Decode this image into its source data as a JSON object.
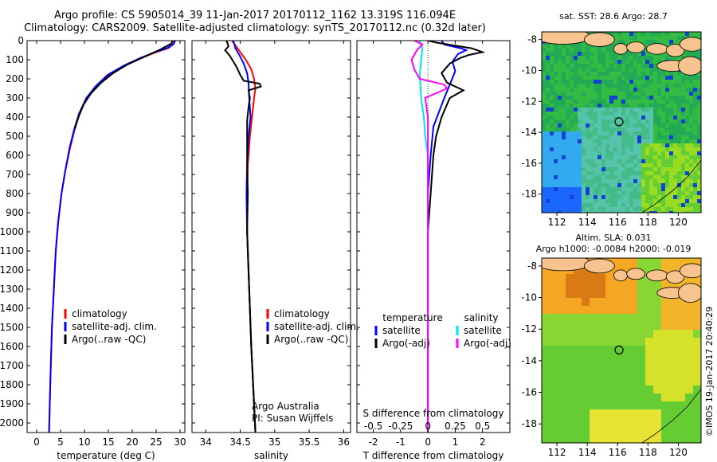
{
  "header": {
    "line1": "Argo profile: CS 5905014_39 11-Jan-2017 20170112_1162 13.319S 116.094E",
    "line2": "Climatology: CARS2009. Satellite-adjusted climatology: synTS_20170112.nc (0.32d later)"
  },
  "chart_data": [
    {
      "type": "line",
      "panel": "temperature",
      "xlabel": "temperature (deg C)",
      "ylabel": "",
      "xlim": [
        -2,
        31
      ],
      "ylim": [
        2050,
        0
      ],
      "xticks": [
        0,
        5,
        10,
        15,
        20,
        25,
        30
      ],
      "yticks": [
        0,
        100,
        200,
        300,
        400,
        500,
        600,
        700,
        800,
        900,
        1000,
        1100,
        1200,
        1300,
        1400,
        1500,
        1600,
        1700,
        1800,
        1900,
        2000
      ],
      "legend": [
        "climatology",
        "satellite-adj. clim.",
        "Argo(..raw -QC)"
      ],
      "series": [
        {
          "name": "climatology",
          "color": "#ff0000",
          "points": [
            [
              28.8,
              0
            ],
            [
              28.5,
              20
            ],
            [
              27.5,
              40
            ],
            [
              25,
              60
            ],
            [
              22,
              90
            ],
            [
              18.5,
              130
            ],
            [
              15,
              180
            ],
            [
              12.5,
              240
            ],
            [
              10.5,
              300
            ],
            [
              9,
              380
            ],
            [
              8,
              460
            ],
            [
              7,
              560
            ],
            [
              6,
              680
            ],
            [
              5.2,
              800
            ],
            [
              4.5,
              950
            ],
            [
              4,
              1100
            ],
            [
              3.6,
              1300
            ],
            [
              3.2,
              1500
            ],
            [
              2.9,
              1750
            ],
            [
              2.6,
              2050
            ]
          ]
        },
        {
          "name": "satellite-adj. clim.",
          "color": "#0000ff",
          "points": [
            [
              29,
              0
            ],
            [
              28.6,
              20
            ],
            [
              27.2,
              40
            ],
            [
              24.8,
              60
            ],
            [
              21.8,
              90
            ],
            [
              18.3,
              130
            ],
            [
              14.8,
              180
            ],
            [
              12.3,
              240
            ],
            [
              10.4,
              300
            ],
            [
              8.9,
              380
            ],
            [
              7.9,
              460
            ],
            [
              6.9,
              560
            ],
            [
              6,
              680
            ],
            [
              5.2,
              800
            ],
            [
              4.5,
              950
            ],
            [
              4,
              1100
            ],
            [
              3.6,
              1300
            ],
            [
              3.2,
              1500
            ],
            [
              2.9,
              1750
            ],
            [
              2.6,
              2050
            ]
          ]
        },
        {
          "name": "Argo(..raw -QC)",
          "color": "#000000",
          "points": [
            [
              28.4,
              0
            ],
            [
              28.2,
              15
            ],
            [
              26,
              45
            ],
            [
              22.5,
              85
            ],
            [
              19,
              125
            ],
            [
              16,
              170
            ],
            [
              13.5,
              220
            ],
            [
              11.4,
              275
            ],
            [
              9.8,
              335
            ],
            [
              8.6,
              410
            ],
            [
              8,
              460
            ]
          ]
        }
      ]
    },
    {
      "type": "line",
      "panel": "salinity",
      "xlabel": "salinity",
      "ylabel": "",
      "xlim": [
        33.8,
        36.1
      ],
      "ylim": [
        2050,
        0
      ],
      "xticks": [
        34,
        34.5,
        35,
        35.5,
        36
      ],
      "legend": [
        "climatology",
        "satellite-adj. clim.",
        "Argo(..raw -QC)"
      ],
      "annotation": [
        "Argo Australia",
        "PI: Susan Wijffels"
      ],
      "series": [
        {
          "name": "climatology",
          "color": "#ff0000",
          "points": [
            [
              34.38,
              0
            ],
            [
              34.48,
              50
            ],
            [
              34.58,
              100
            ],
            [
              34.66,
              150
            ],
            [
              34.7,
              200
            ],
            [
              34.72,
              250
            ],
            [
              34.7,
              300
            ],
            [
              34.67,
              400
            ],
            [
              34.64,
              500
            ],
            [
              34.61,
              650
            ],
            [
              34.6,
              800
            ],
            [
              34.6,
              1000
            ],
            [
              34.63,
              1300
            ],
            [
              34.66,
              1600
            ],
            [
              34.7,
              1900
            ],
            [
              34.72,
              2050
            ]
          ]
        },
        {
          "name": "satellite-adj. clim.",
          "color": "#0000ff",
          "points": [
            [
              34.4,
              0
            ],
            [
              34.43,
              40
            ],
            [
              34.48,
              70
            ],
            [
              34.55,
              120
            ],
            [
              34.6,
              170
            ],
            [
              34.62,
              220
            ],
            [
              34.63,
              300
            ],
            [
              34.65,
              400
            ],
            [
              34.62,
              500
            ],
            [
              34.6,
              650
            ],
            [
              34.59,
              800
            ],
            [
              34.6,
              1000
            ],
            [
              34.63,
              1300
            ],
            [
              34.66,
              1600
            ],
            [
              34.7,
              1900
            ],
            [
              34.72,
              2050
            ]
          ]
        },
        {
          "name": "Argo(..raw -QC)",
          "color": "#000000",
          "points": [
            [
              34.3,
              0
            ],
            [
              34.33,
              30
            ],
            [
              34.28,
              50
            ],
            [
              34.35,
              80
            ],
            [
              34.4,
              110
            ],
            [
              34.45,
              140
            ],
            [
              34.5,
              180
            ],
            [
              34.55,
              210
            ],
            [
              34.78,
              225
            ],
            [
              34.8,
              240
            ],
            [
              34.62,
              260
            ],
            [
              34.64,
              300
            ],
            [
              34.62,
              350
            ],
            [
              34.6,
              420
            ],
            [
              34.6,
              500
            ],
            [
              34.6,
              650
            ],
            [
              34.61,
              800
            ],
            [
              34.6,
              1000
            ],
            [
              34.63,
              1300
            ],
            [
              34.66,
              1600
            ],
            [
              34.7,
              1900
            ],
            [
              34.72,
              2050
            ]
          ]
        }
      ]
    },
    {
      "type": "line",
      "panel": "differences",
      "xlabel": "T difference from climatology",
      "x2label": "S difference from climatology",
      "xlim": [
        -2.6,
        3.0
      ],
      "ylim": [
        2050,
        0
      ],
      "xticks": [
        -2,
        -1,
        0,
        1,
        2
      ],
      "x2ticks": [
        "-0.5",
        "-0.25",
        "0",
        "0.25",
        "0.5"
      ],
      "x2tick_positions": [
        -2,
        -1,
        0,
        1,
        2
      ],
      "legend_titles": [
        "temperature",
        "salinity"
      ],
      "legend": [
        "satellite",
        "Argo(-adj)",
        "satellite",
        "Argo(-adj)"
      ],
      "series": [
        {
          "name": "satellite",
          "quantity": "temperature",
          "color": "#0000ff",
          "points": [
            [
              0.5,
              0
            ],
            [
              0.6,
              20
            ],
            [
              1.2,
              40
            ],
            [
              1.4,
              50
            ],
            [
              1.1,
              70
            ],
            [
              0.9,
              110
            ],
            [
              1.0,
              160
            ],
            [
              0.8,
              230
            ],
            [
              0.6,
              300
            ],
            [
              0.2,
              450
            ],
            [
              0.1,
              600
            ],
            [
              0,
              800
            ],
            [
              0,
              2050
            ]
          ]
        },
        {
          "name": "Argo(-adj)",
          "quantity": "temperature",
          "color": "#000000",
          "points": [
            [
              0,
              0
            ],
            [
              0.3,
              10
            ],
            [
              1.6,
              40
            ],
            [
              2.0,
              60
            ],
            [
              1.5,
              75
            ],
            [
              1.2,
              90
            ],
            [
              0.8,
              120
            ],
            [
              0.5,
              170
            ],
            [
              0.7,
              220
            ],
            [
              1.3,
              260
            ],
            [
              0.8,
              300
            ],
            [
              0.5,
              400
            ],
            [
              0.3,
              500
            ],
            [
              0.2,
              600
            ],
            [
              0.1,
              800
            ],
            [
              0,
              1000
            ],
            [
              0,
              2050
            ]
          ]
        },
        {
          "name": "satellite",
          "quantity": "salinity",
          "color": "#00e5ee",
          "points": [
            [
              -0.3,
              0
            ],
            [
              -0.2,
              40
            ],
            [
              -0.25,
              100
            ],
            [
              -0.3,
              180
            ],
            [
              -0.25,
              300
            ],
            [
              -0.15,
              400
            ],
            [
              -0.1,
              500
            ],
            [
              0,
              600
            ],
            [
              0,
              2050
            ]
          ]
        },
        {
          "name": "Argo(-adj)",
          "quantity": "salinity",
          "color": "#ff00ff",
          "points": [
            [
              -0.5,
              0
            ],
            [
              -0.2,
              20
            ],
            [
              -0.4,
              50
            ],
            [
              -0.6,
              100
            ],
            [
              -0.5,
              150
            ],
            [
              -0.3,
              200
            ],
            [
              0.6,
              230
            ],
            [
              0.7,
              250
            ],
            [
              -0.1,
              300
            ],
            [
              0,
              400
            ],
            [
              0,
              2050
            ]
          ]
        }
      ]
    },
    {
      "type": "heatmap",
      "panel": "sst-map",
      "title": "sat. SST: 28.6 Argo: 28.7",
      "xticks": [
        112,
        114,
        116,
        118,
        120
      ],
      "yticks": [
        -8,
        -10,
        -12,
        -14,
        -16,
        -18
      ],
      "xlim": [
        111,
        121.5
      ],
      "ylim": [
        -19.2,
        -7.5
      ],
      "marker": [
        116.094,
        -13.319
      ]
    },
    {
      "type": "heatmap",
      "panel": "sla-map",
      "title": "Altim. SLA: 0.031",
      "subtitle": "Argo h1000: -0.0084 h2000: -0.019",
      "xticks": [
        112,
        114,
        116,
        118,
        120
      ],
      "yticks": [
        -8,
        -10,
        -12,
        -14,
        -16,
        -18
      ],
      "xlim": [
        111,
        121.5
      ],
      "ylim": [
        -19.2,
        -7.5
      ],
      "marker": [
        116.094,
        -13.319
      ]
    }
  ],
  "credit": "©IMOS 19-Jan-2017 20:40:29"
}
